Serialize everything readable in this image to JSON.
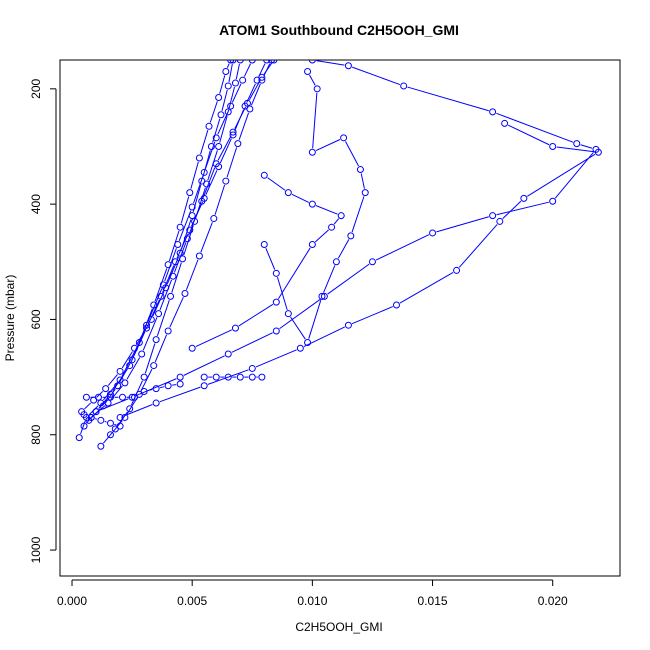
{
  "chart_data": {
    "type": "scatter",
    "title": "ATOM1 Southbound C2H5OOH_GMI",
    "xlabel": "C2H5OOH_GMI",
    "ylabel": "Pressure (mbar)",
    "xlim": [
      -0.0005,
      0.0228
    ],
    "ylim": [
      1045,
      150
    ],
    "y_reversed": true,
    "x_ticks": [
      0.0,
      0.005,
      0.01,
      0.015,
      0.02
    ],
    "x_tick_labels": [
      "0.000",
      "0.005",
      "0.010",
      "0.015",
      "0.020"
    ],
    "y_ticks": [
      200,
      400,
      600,
      800,
      1000
    ],
    "y_tick_labels": [
      "200",
      "400",
      "600",
      "800",
      "1000"
    ],
    "grid": false,
    "legend": "none",
    "marker": "open-circle",
    "line_color": "#0000ff",
    "series": [
      {
        "values": [
          [
            0.0003,
            805
          ],
          [
            0.0006,
            770
          ],
          [
            0.0012,
            745
          ],
          [
            0.002,
            705
          ],
          [
            0.0028,
            640
          ],
          [
            0.0034,
            575
          ],
          [
            0.004,
            505
          ],
          [
            0.0045,
            440
          ],
          [
            0.0049,
            380
          ],
          [
            0.0053,
            320
          ],
          [
            0.0057,
            265
          ],
          [
            0.0061,
            215
          ],
          [
            0.0064,
            170
          ],
          [
            0.0066,
            150
          ]
        ]
      },
      {
        "values": [
          [
            0.0005,
            785
          ],
          [
            0.001,
            760
          ],
          [
            0.0016,
            730
          ],
          [
            0.0024,
            680
          ],
          [
            0.0031,
            610
          ],
          [
            0.0038,
            540
          ],
          [
            0.0044,
            470
          ],
          [
            0.005,
            405
          ],
          [
            0.0055,
            345
          ],
          [
            0.006,
            285
          ],
          [
            0.0066,
            230
          ],
          [
            0.0071,
            185
          ],
          [
            0.0075,
            150
          ]
        ]
      },
      {
        "values": [
          [
            0.0008,
            770
          ],
          [
            0.0015,
            745
          ],
          [
            0.0022,
            710
          ],
          [
            0.0029,
            660
          ],
          [
            0.0036,
            590
          ],
          [
            0.0042,
            525
          ],
          [
            0.0048,
            460
          ],
          [
            0.0054,
            395
          ],
          [
            0.006,
            330
          ],
          [
            0.0067,
            275
          ],
          [
            0.0073,
            225
          ],
          [
            0.0079,
            180
          ],
          [
            0.0084,
            150
          ]
        ]
      },
      {
        "values": [
          [
            0.0012,
            820
          ],
          [
            0.0018,
            790
          ],
          [
            0.0024,
            755
          ],
          [
            0.003,
            700
          ],
          [
            0.0035,
            635
          ],
          [
            0.0041,
            560
          ],
          [
            0.0046,
            495
          ],
          [
            0.0051,
            430
          ],
          [
            0.0056,
            365
          ],
          [
            0.0061,
            300
          ],
          [
            0.0065,
            240
          ],
          [
            0.0068,
            190
          ],
          [
            0.007,
            150
          ]
        ]
      },
      {
        "values": [
          [
            0.0004,
            760
          ],
          [
            0.0009,
            740
          ],
          [
            0.0014,
            720
          ],
          [
            0.002,
            690
          ],
          [
            0.0026,
            650
          ],
          [
            0.0033,
            600
          ],
          [
            0.0039,
            545
          ],
          [
            0.0045,
            485
          ],
          [
            0.005,
            420
          ],
          [
            0.0054,
            360
          ],
          [
            0.0058,
            300
          ],
          [
            0.0062,
            245
          ],
          [
            0.0065,
            195
          ],
          [
            0.0067,
            150
          ]
        ]
      },
      {
        "values": [
          [
            0.0016,
            800
          ],
          [
            0.0022,
            770
          ],
          [
            0.0028,
            730
          ],
          [
            0.0034,
            680
          ],
          [
            0.004,
            620
          ],
          [
            0.0047,
            555
          ],
          [
            0.0053,
            490
          ],
          [
            0.0059,
            425
          ],
          [
            0.0064,
            360
          ],
          [
            0.0069,
            295
          ],
          [
            0.0074,
            235
          ],
          [
            0.0079,
            185
          ],
          [
            0.0083,
            150
          ]
        ]
      },
      {
        "values": [
          [
            0.0007,
            775
          ],
          [
            0.0013,
            750
          ],
          [
            0.0019,
            715
          ],
          [
            0.0025,
            670
          ],
          [
            0.0031,
            615
          ],
          [
            0.0037,
            560
          ],
          [
            0.0043,
            500
          ],
          [
            0.0049,
            445
          ],
          [
            0.0055,
            390
          ],
          [
            0.0061,
            335
          ],
          [
            0.0067,
            280
          ],
          [
            0.0072,
            230
          ],
          [
            0.0077,
            185
          ],
          [
            0.0081,
            150
          ]
        ]
      },
      {
        "values": [
          [
            0.001,
            760
          ],
          [
            0.0025,
            735
          ],
          [
            0.0045,
            700
          ],
          [
            0.0065,
            660
          ],
          [
            0.0085,
            620
          ],
          [
            0.0105,
            560
          ],
          [
            0.0125,
            500
          ],
          [
            0.015,
            450
          ],
          [
            0.0175,
            420
          ],
          [
            0.02,
            395
          ],
          [
            0.0218,
            305
          ],
          [
            0.021,
            295
          ],
          [
            0.0175,
            240
          ],
          [
            0.0138,
            195
          ],
          [
            0.0115,
            160
          ],
          [
            0.01,
            150
          ]
        ]
      },
      {
        "values": [
          [
            0.002,
            770
          ],
          [
            0.0035,
            745
          ],
          [
            0.0055,
            715
          ],
          [
            0.0075,
            685
          ],
          [
            0.0095,
            650
          ],
          [
            0.0115,
            610
          ],
          [
            0.0135,
            575
          ],
          [
            0.016,
            515
          ],
          [
            0.0178,
            430
          ],
          [
            0.0188,
            390
          ],
          [
            0.0219,
            310
          ],
          [
            0.02,
            300
          ],
          [
            0.018,
            260
          ]
        ]
      },
      {
        "values": [
          [
            0.0055,
            700
          ],
          [
            0.006,
            700
          ],
          [
            0.0065,
            700
          ],
          [
            0.007,
            700
          ],
          [
            0.0075,
            700
          ],
          [
            0.0079,
            700
          ]
        ]
      },
      {
        "values": [
          [
            0.003,
            725
          ],
          [
            0.0035,
            720
          ],
          [
            0.004,
            715
          ],
          [
            0.0045,
            712
          ]
        ]
      },
      {
        "values": [
          [
            0.008,
            470
          ],
          [
            0.0085,
            520
          ],
          [
            0.009,
            590
          ],
          [
            0.0098,
            640
          ],
          [
            0.0104,
            560
          ],
          [
            0.011,
            500
          ],
          [
            0.0116,
            455
          ],
          [
            0.0122,
            380
          ],
          [
            0.012,
            340
          ],
          [
            0.0113,
            285
          ],
          [
            0.01,
            310
          ],
          [
            0.0102,
            200
          ],
          [
            0.0098,
            170
          ]
        ]
      },
      {
        "values": [
          [
            0.0006,
            735
          ],
          [
            0.0011,
            735
          ],
          [
            0.0016,
            735
          ],
          [
            0.0021,
            735
          ],
          [
            0.0026,
            735
          ]
        ]
      },
      {
        "values": [
          [
            0.0005,
            765
          ],
          [
            0.0008,
            770
          ],
          [
            0.0012,
            775
          ],
          [
            0.0016,
            780
          ],
          [
            0.002,
            785
          ]
        ]
      },
      {
        "values": [
          [
            0.005,
            650
          ],
          [
            0.0068,
            615
          ],
          [
            0.0085,
            570
          ],
          [
            0.01,
            470
          ],
          [
            0.0108,
            440
          ],
          [
            0.0112,
            420
          ],
          [
            0.01,
            400
          ],
          [
            0.009,
            380
          ],
          [
            0.008,
            350
          ]
        ]
      }
    ]
  }
}
